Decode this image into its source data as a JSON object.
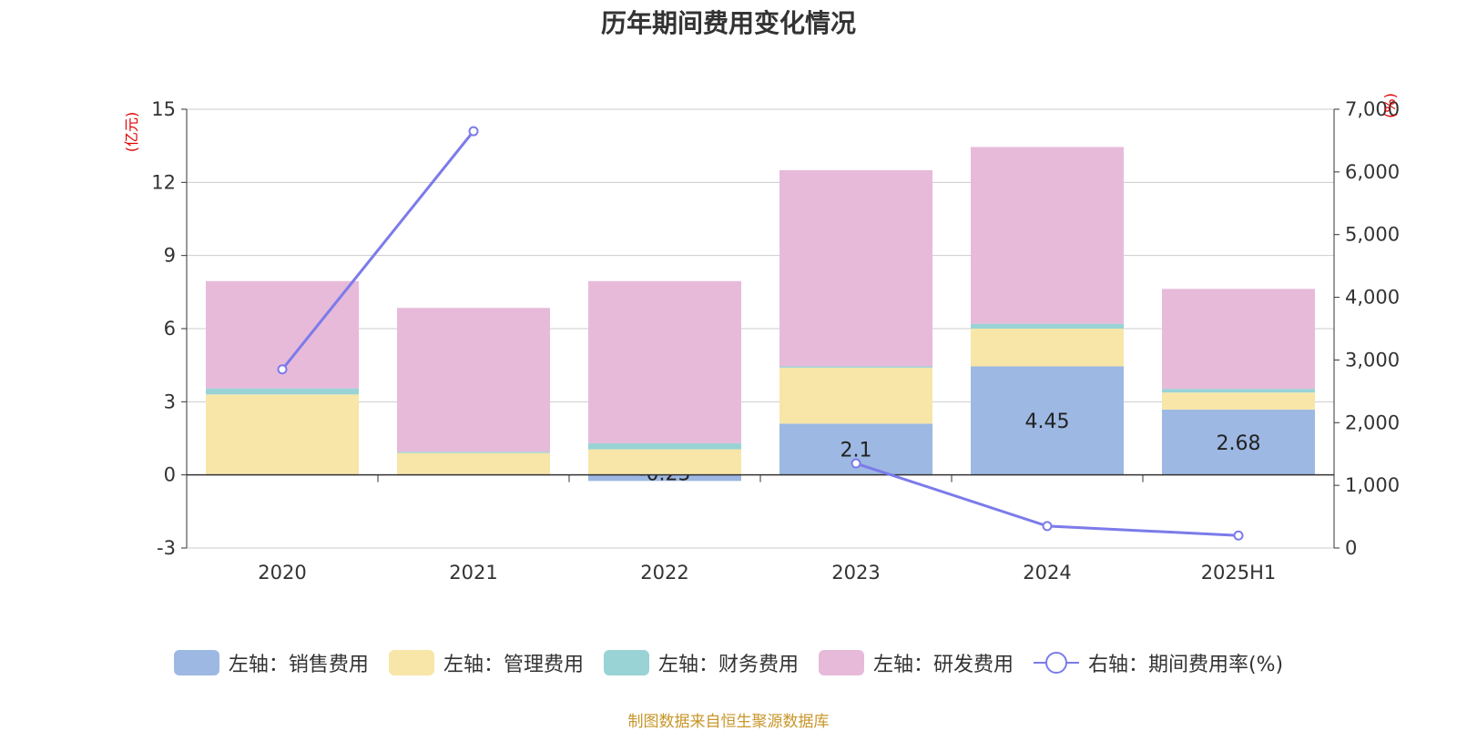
{
  "chart_data": {
    "type": "bar",
    "title": "历年期间费用变化情况",
    "categories": [
      "2020",
      "2021",
      "2022",
      "2023",
      "2024",
      "2025H1"
    ],
    "left_axis": {
      "unit": "(亿元)",
      "ylim": [
        -3,
        15
      ],
      "ticks": [
        -3,
        0,
        3,
        6,
        9,
        12,
        15
      ]
    },
    "right_axis": {
      "unit": "(%)",
      "ylim": [
        0,
        7000
      ],
      "ticks": [
        0,
        1000,
        2000,
        3000,
        4000,
        5000,
        6000,
        7000
      ],
      "tick_labels": [
        "0",
        "1,000",
        "2,000",
        "3,000",
        "4,000",
        "5,000",
        "6,000",
        "7,000"
      ]
    },
    "series": [
      {
        "name": "左轴：销售费用",
        "axis": "left",
        "stack": true,
        "color": "#9db8e2",
        "values": [
          0,
          0,
          -0.25,
          2.1,
          4.45,
          2.68
        ],
        "labels": [
          "",
          "",
          "-0.25",
          "2.1",
          "4.45",
          "2.68"
        ]
      },
      {
        "name": "左轴：管理费用",
        "axis": "left",
        "stack": true,
        "color": "#f7e6a8",
        "values": [
          3.3,
          0.9,
          1.05,
          2.3,
          1.55,
          0.7
        ]
      },
      {
        "name": "左轴：财务费用",
        "axis": "left",
        "stack": true,
        "color": "#99d3d5",
        "values": [
          0.25,
          0.05,
          0.25,
          0.05,
          0.2,
          0.15
        ]
      },
      {
        "name": "左轴：研发费用",
        "axis": "left",
        "stack": true,
        "color": "#e7bada",
        "values": [
          4.4,
          5.9,
          6.65,
          8.05,
          7.25,
          4.1
        ]
      },
      {
        "name": "右轴：期间费用率(%)",
        "axis": "right",
        "type": "line",
        "color": "#7b7bea",
        "values": [
          2850,
          6650,
          null,
          1350,
          350,
          200
        ]
      }
    ],
    "grid": true,
    "legend_position": "bottom"
  },
  "source_note": "制图数据来自恒生聚源数据库"
}
